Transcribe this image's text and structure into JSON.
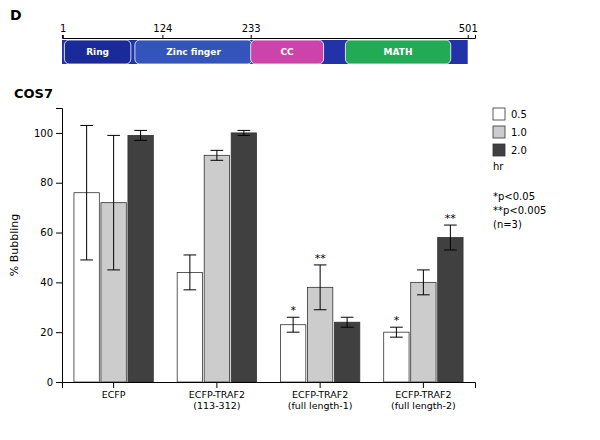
{
  "chart_data": [
    {
      "type": "bar",
      "panel_label": "D",
      "title": "COS7",
      "ylabel": "% Bubbling",
      "categories": [
        "ECFP",
        "ECFP-TRAF2\n(113-312)",
        "ECFP-TRAF2\n(full length-1)",
        "ECFP-TRAF2\n(full length-2)"
      ],
      "series": [
        {
          "name": "0.5",
          "color": "#ffffff",
          "values": [
            76,
            44,
            23,
            20
          ],
          "errors": [
            27,
            7,
            3,
            2
          ]
        },
        {
          "name": "1.0",
          "color": "#cccccc",
          "values": [
            72,
            91,
            38,
            40
          ],
          "errors": [
            27,
            2,
            9,
            5
          ]
        },
        {
          "name": "2.0",
          "color": "#404040",
          "values": [
            99,
            100,
            24,
            58
          ],
          "errors": [
            2,
            1,
            2,
            5
          ]
        }
      ],
      "ylim": [
        0,
        110
      ],
      "yticks": [
        0,
        20,
        40,
        60,
        80,
        100
      ],
      "grid": false,
      "legend": "right",
      "legend_title": "hr",
      "annotation": "*p<0.05\n**p<0.005\n(n=3)",
      "annotations": [
        {
          "text": "*",
          "category": 2,
          "series": 0
        },
        {
          "text": "**",
          "category": 2,
          "series": 1
        },
        {
          "text": "*",
          "category": 3,
          "series": 0
        },
        {
          "text": "**",
          "category": 3,
          "series": 2
        }
      ]
    },
    {
      "type": "domain_diagram",
      "xlim": [
        0,
        510
      ],
      "xticks": [
        1,
        124,
        233,
        501
      ],
      "backbone": {
        "start": 0,
        "end": 501,
        "color": "#2233aa"
      },
      "domains": [
        {
          "name": "Ring",
          "start": 3,
          "end": 85,
          "color": "#1a2a99"
        },
        {
          "name": "Zinc finger",
          "start": 90,
          "end": 235,
          "color": "#3355bb"
        },
        {
          "name": "CC",
          "start": 233,
          "end": 323,
          "color": "#cc44aa"
        },
        {
          "name": "MATH",
          "start": 350,
          "end": 480,
          "color": "#22aa55"
        }
      ]
    }
  ]
}
